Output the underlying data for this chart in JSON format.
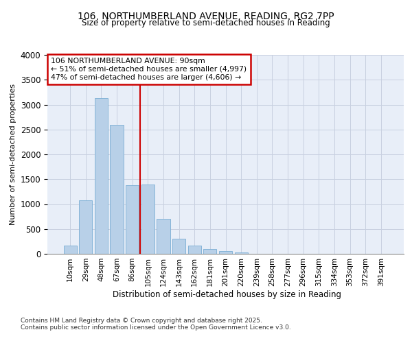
{
  "title_line1": "106, NORTHUMBERLAND AVENUE, READING, RG2 7PP",
  "title_line2": "Size of property relative to semi-detached houses in Reading",
  "xlabel": "Distribution of semi-detached houses by size in Reading",
  "ylabel": "Number of semi-detached properties",
  "categories": [
    "10sqm",
    "29sqm",
    "48sqm",
    "67sqm",
    "86sqm",
    "105sqm",
    "124sqm",
    "143sqm",
    "162sqm",
    "181sqm",
    "201sqm",
    "220sqm",
    "239sqm",
    "258sqm",
    "277sqm",
    "296sqm",
    "315sqm",
    "334sqm",
    "353sqm",
    "372sqm",
    "391sqm"
  ],
  "values": [
    170,
    1080,
    3130,
    2600,
    1380,
    1390,
    710,
    310,
    170,
    95,
    55,
    30,
    0,
    0,
    0,
    0,
    0,
    0,
    0,
    0,
    0
  ],
  "bar_color": "#b8d0e8",
  "bar_edge_color": "#7aadd4",
  "vline_color": "#cc0000",
  "annotation_title": "106 NORTHUMBERLAND AVENUE: 90sqm",
  "annotation_line2": "← 51% of semi-detached houses are smaller (4,997)",
  "annotation_line3": "47% of semi-detached houses are larger (4,606) →",
  "annotation_box_color": "#cc0000",
  "ylim": [
    0,
    4000
  ],
  "yticks": [
    0,
    500,
    1000,
    1500,
    2000,
    2500,
    3000,
    3500,
    4000
  ],
  "grid_color": "#c8d0e0",
  "bg_color": "#e8eef8",
  "footer_line1": "Contains HM Land Registry data © Crown copyright and database right 2025.",
  "footer_line2": "Contains public sector information licensed under the Open Government Licence v3.0."
}
